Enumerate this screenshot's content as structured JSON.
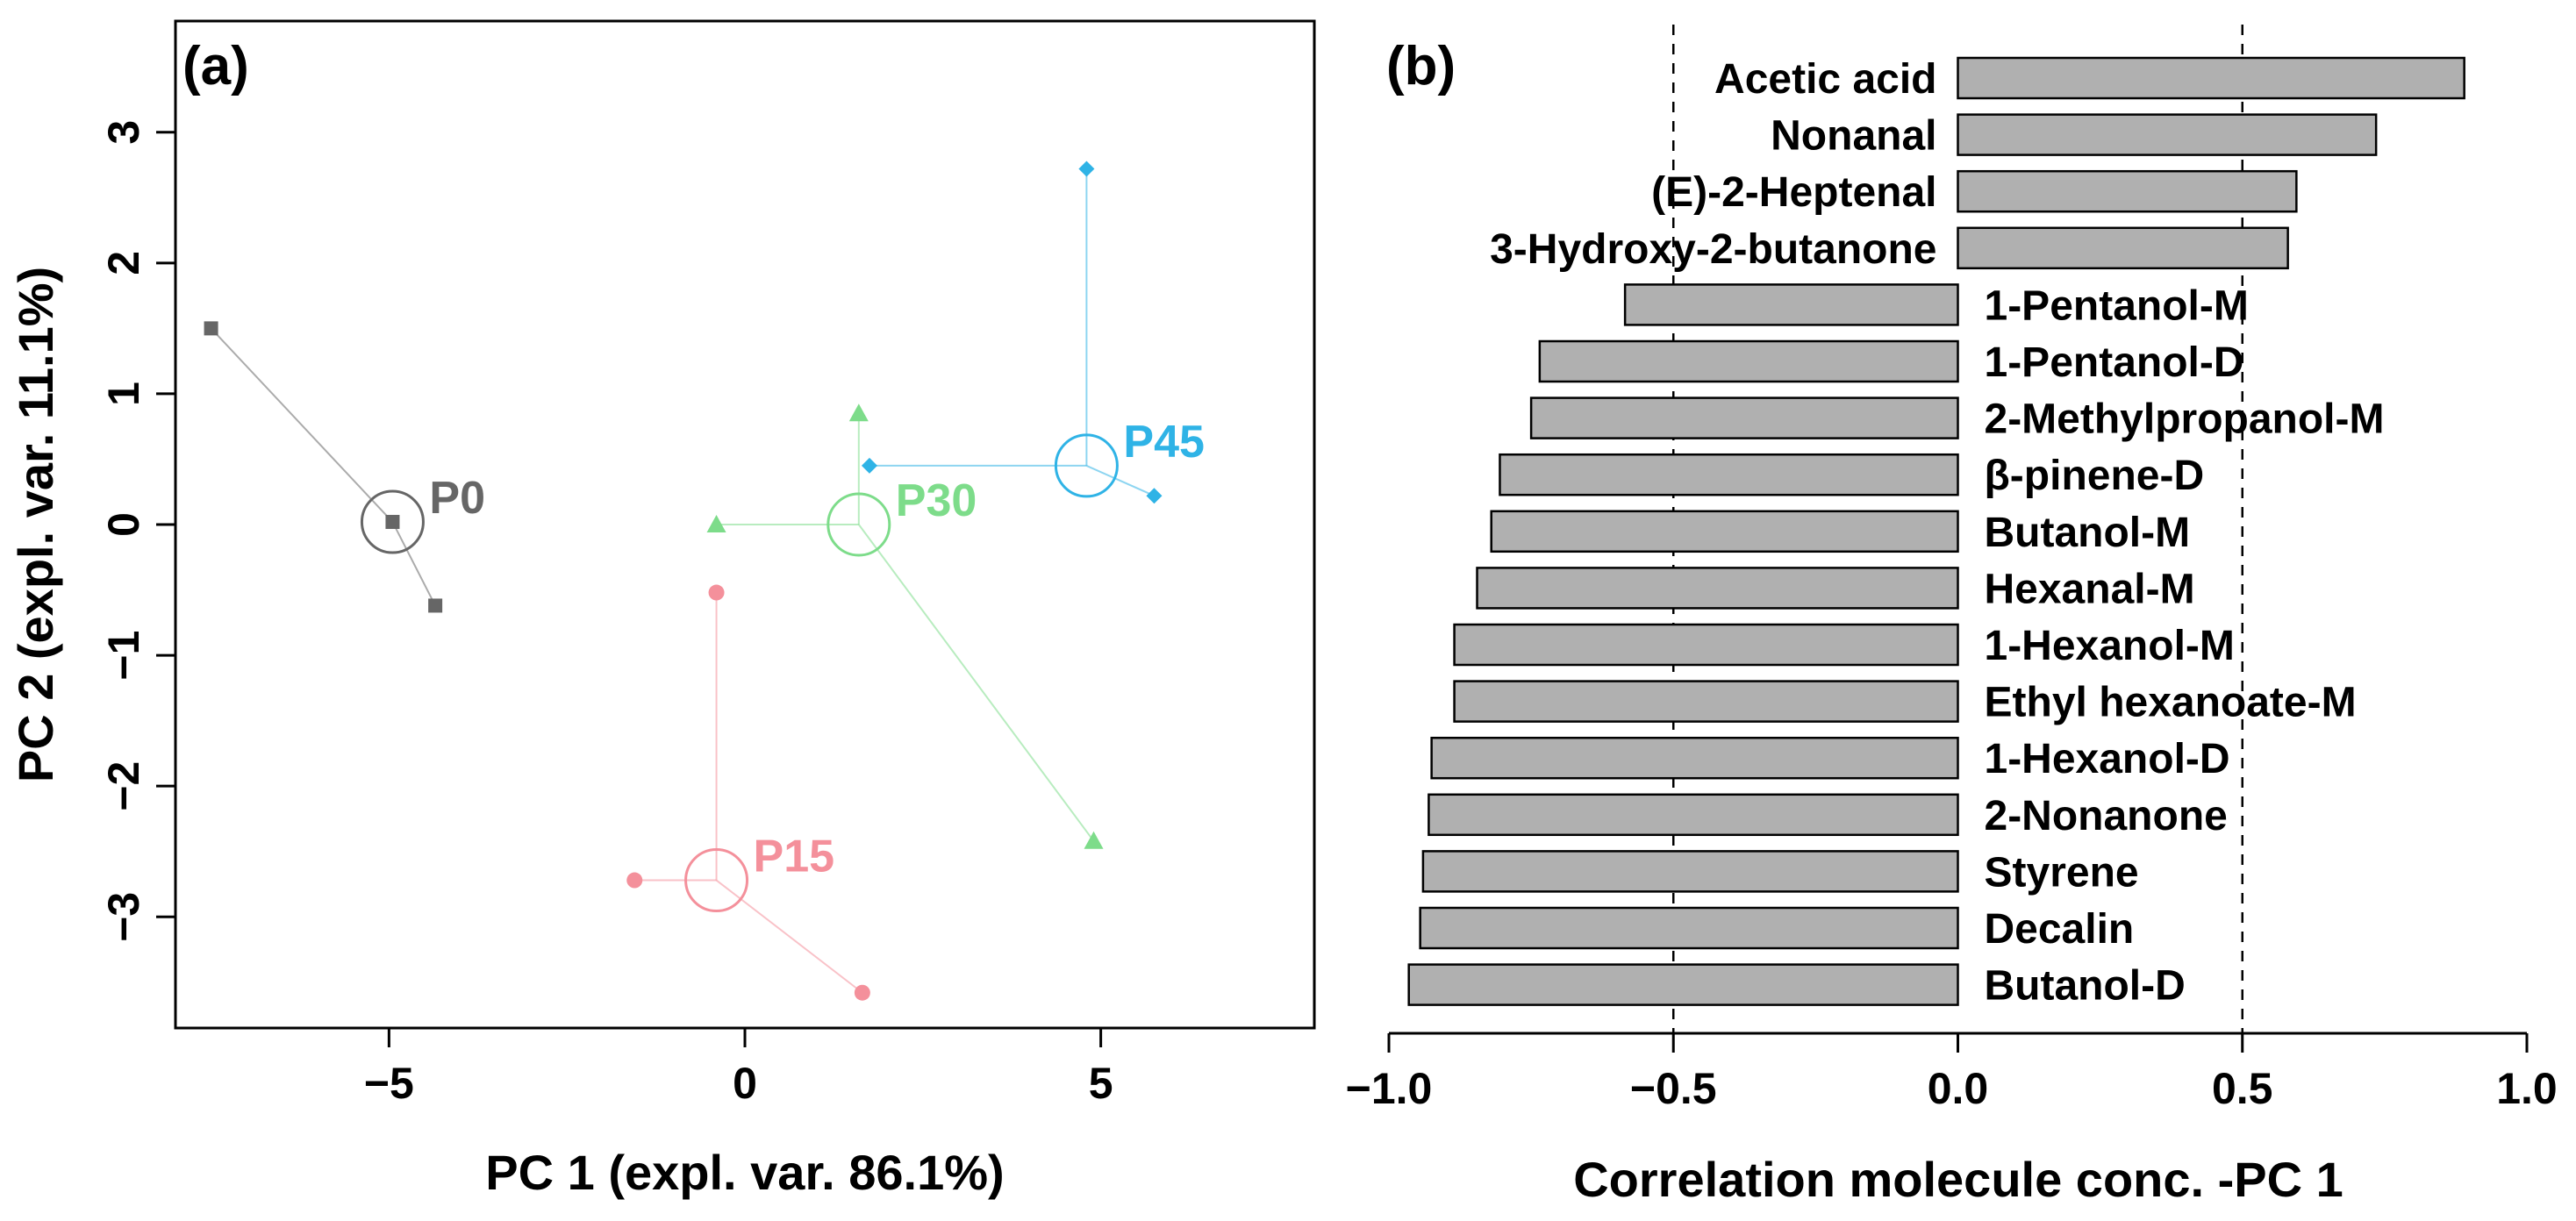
{
  "chart_data": [
    {
      "type": "scatter",
      "panel_label": "(a)",
      "xlabel": "PC 1 (expl. var. 86.1%)",
      "ylabel": "PC 2 (expl. var. 11.1%)",
      "xlim": [
        -8,
        8
      ],
      "ylim": [
        -3.85,
        3.85
      ],
      "x_ticks": [
        -5,
        0,
        5
      ],
      "x_tick_labels": [
        "−5",
        "0",
        "5"
      ],
      "y_ticks": [
        -3,
        -2,
        -1,
        0,
        1,
        2,
        3
      ],
      "y_tick_labels": [
        "−3",
        "−2",
        "−1",
        "0",
        "1",
        "2",
        "3"
      ],
      "groups": [
        {
          "name": "P0",
          "color": "#666666",
          "marker": "square",
          "centroid": [
            -4.95,
            0.02
          ],
          "points": [
            [
              -7.5,
              1.5
            ],
            [
              -4.95,
              0.02
            ],
            [
              -4.35,
              -0.62
            ]
          ]
        },
        {
          "name": "P15",
          "color": "#f4909b",
          "marker": "circle",
          "centroid": [
            -0.4,
            -2.72
          ],
          "points": [
            [
              -0.4,
              -0.52
            ],
            [
              -1.55,
              -2.72
            ],
            [
              1.65,
              -3.58
            ]
          ]
        },
        {
          "name": "P30",
          "color": "#7ddc8a",
          "marker": "triangle",
          "centroid": [
            1.6,
            0.0
          ],
          "points": [
            [
              1.6,
              0.85
            ],
            [
              -0.4,
              0.0
            ],
            [
              4.9,
              -2.42
            ]
          ]
        },
        {
          "name": "P45",
          "color": "#2fb3e6",
          "marker": "diamond",
          "centroid": [
            4.8,
            0.45
          ],
          "points": [
            [
              4.8,
              2.72
            ],
            [
              1.75,
              0.45
            ],
            [
              5.75,
              0.22
            ]
          ]
        }
      ]
    },
    {
      "type": "bar",
      "orientation": "horizontal",
      "panel_label": "(b)",
      "xlabel": "Correlation molecule conc. -PC 1",
      "xlim": [
        -1.0,
        1.0
      ],
      "x_ticks": [
        -1.0,
        -0.5,
        0.0,
        0.5,
        1.0
      ],
      "x_tick_labels": [
        "−1.0",
        "−0.5",
        "0.0",
        "0.5",
        "1.0"
      ],
      "reference_lines": [
        -0.5,
        0.5
      ],
      "categories": [
        "Acetic acid",
        "Nonanal",
        "(E)-2-Heptenal",
        "3-Hydroxy-2-butanone",
        "1-Pentanol-M",
        "1-Pentanol-D",
        "2-Methylpropanol-M",
        "β-pinene-D",
        "Butanol-M",
        "Hexanal-M",
        "1-Hexanol-M",
        "Ethyl hexanoate-M",
        "1-Hexanol-D",
        "2-Nonanone",
        "Styrene",
        "Decalin",
        "Butanol-D"
      ],
      "values": [
        0.89,
        0.735,
        0.595,
        0.58,
        -0.585,
        -0.735,
        -0.75,
        -0.805,
        -0.82,
        -0.845,
        -0.885,
        -0.885,
        -0.925,
        -0.93,
        -0.94,
        -0.945,
        -0.965
      ]
    }
  ]
}
